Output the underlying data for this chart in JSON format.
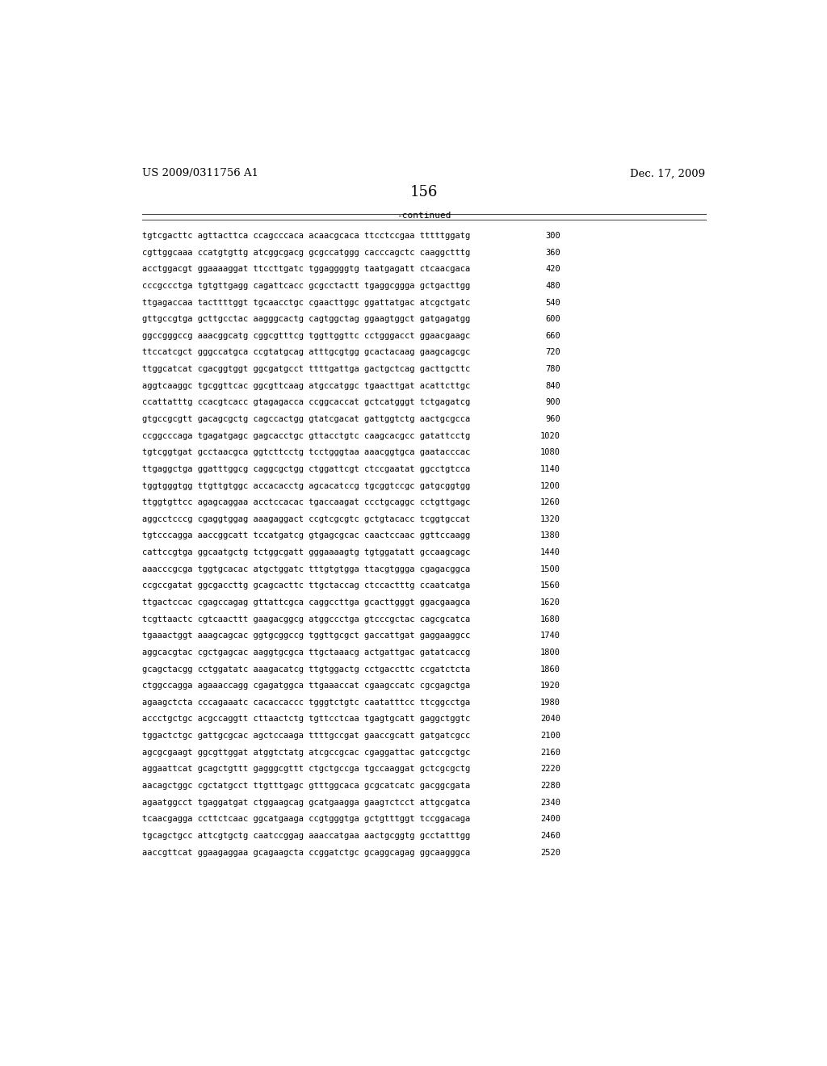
{
  "patent_number": "US 2009/0311756 A1",
  "date": "Dec. 17, 2009",
  "page_number": "156",
  "continued_label": "-continued",
  "background_color": "#ffffff",
  "text_color": "#000000",
  "font_size": 7.5,
  "header_font_size": 9.5,
  "page_num_font_size": 13,
  "sequence_lines": [
    [
      "tgtcgacttc agttacttca ccagcccaca acaacgcaca ttcctccgaa tttttggatg",
      "300"
    ],
    [
      "cgttggcaaa ccatgtgttg atcggcgacg gcgccatggg cacccagctc caaggctttg",
      "360"
    ],
    [
      "acctggacgt ggaaaaggat ttccttgatc tggaggggtg taatgagatt ctcaacgaca",
      "420"
    ],
    [
      "cccgccctga tgtgttgagg cagattcacc gcgcctactt tgaggcggga gctgacttgg",
      "480"
    ],
    [
      "ttgagaccaa tacttttggt tgcaacctgc cgaacttggc ggattatgac atcgctgatc",
      "540"
    ],
    [
      "gttgccgtga gcttgcctac aagggcactg cagtggctag ggaagtggct gatgagatgg",
      "600"
    ],
    [
      "ggccgggccg aaacggcatg cggcgtttcg tggttggttc cctgggacct ggaacgaagc",
      "660"
    ],
    [
      "ttccatcgct gggccatgca ccgtatgcag atttgcgtgg gcactacaag gaagcagcgc",
      "720"
    ],
    [
      "ttggcatcat cgacggtggt ggcgatgcct ttttgattga gactgctcag gacttgcttc",
      "780"
    ],
    [
      "aggtcaaggc tgcggttcac ggcgttcaag atgccatggc tgaacttgat acattcttgc",
      "840"
    ],
    [
      "ccattatttg ccacgtcacc gtagagacca ccggcaccat gctcatgggt tctgagatcg",
      "900"
    ],
    [
      "gtgccgcgtt gacagcgctg cagccactgg gtatcgacat gattggtctg aactgcgcca",
      "960"
    ],
    [
      "ccggcccaga tgagatgagc gagcacctgc gttacctgtc caagcacgcc gatattcctg",
      "1020"
    ],
    [
      "tgtcggtgat gcctaacgca ggtcttcctg tcctgggtaa aaacggtgca gaatacccac",
      "1080"
    ],
    [
      "ttgaggctga ggatttggcg caggcgctgg ctggattcgt ctccgaatat ggcctgtcca",
      "1140"
    ],
    [
      "tggtgggtgg ttgttgtggc accacacctg agcacatccg tgcggtccgc gatgcggtgg",
      "1200"
    ],
    [
      "ttggtgttcc agagcaggaa acctccacac tgaccaagat ccctgcaggc cctgttgagc",
      "1260"
    ],
    [
      "aggcctcccg cgaggtggag aaagaggact ccgtcgcgtc gctgtacacc tcggtgccat",
      "1320"
    ],
    [
      "tgtcccagga aaccggcatt tccatgatcg gtgagcgcac caactccaac ggttccaagg",
      "1380"
    ],
    [
      "cattccgtga ggcaatgctg tctggcgatt gggaaaagtg tgtggatatt gccaagcagc",
      "1440"
    ],
    [
      "aaacccgcga tggtgcacac atgctggatc tttgtgtgga ttacgtggga cgagacggca",
      "1500"
    ],
    [
      "ccgccgatat ggcgaccttg gcagcacttc ttgctaccag ctccactttg ccaatcatga",
      "1560"
    ],
    [
      "ttgactccac cgagccagag gttattcgca caggccttga gcacttgggt ggacgaagca",
      "1620"
    ],
    [
      "tcgttaactc cgtcaacttt gaagacggcg atggccctga gtcccgctac cagcgcatca",
      "1680"
    ],
    [
      "tgaaactggt aaagcagcac ggtgcggccg tggttgcgct gaccattgat gaggaaggcc",
      "1740"
    ],
    [
      "aggcacgtac cgctgagcac aaggtgcgca ttgctaaacg actgattgac gatatcaccg",
      "1800"
    ],
    [
      "gcagctacgg cctggatatc aaagacatcg ttgtggactg cctgaccttc ccgatctcta",
      "1860"
    ],
    [
      "ctggccagga agaaaccagg cgagatggca ttgaaaccat cgaagccatc cgcgagctga",
      "1920"
    ],
    [
      "agaagctcta cccagaaatc cacaccaccc tgggtctgtc caatatttcc ttcggcctga",
      "1980"
    ],
    [
      "accctgctgc acgccaggtt cttaactctg tgttcctcaa tgagtgcatt gaggctggtc",
      "2040"
    ],
    [
      "tggactctgc gattgcgcac agctccaaga ttttgccgat gaaccgcatt gatgatcgcc",
      "2100"
    ],
    [
      "agcgcgaagt ggcgttggat atggtctatg atcgccgcac cgaggattac gatccgctgc",
      "2160"
    ],
    [
      "aggaattcat gcagctgttt gagggcgttt ctgctgccga tgccaaggat gctcgcgctg",
      "2220"
    ],
    [
      "aacagctggc cgctatgcct ttgtttgagc gtttggcaca gcgcatcatc gacggcgata",
      "2280"
    ],
    [
      "agaatggcct tgaggatgat ctggaagcag gcatgaagga gaagтctcct attgcgatca",
      "2340"
    ],
    [
      "tcaacgagga ccttctcaac ggcatgaaga ccgtgggtga gctgtttggt tccggacaga",
      "2400"
    ],
    [
      "tgcagctgcc attcgtgctg caatccggag aaaccatgaa aactgcggtg gcctatttgg",
      "2460"
    ],
    [
      "aaccgttcat ggaagaggaa gcagaagcta ccggatctgc gcaggcagag ggcaagggca",
      "2520"
    ]
  ]
}
